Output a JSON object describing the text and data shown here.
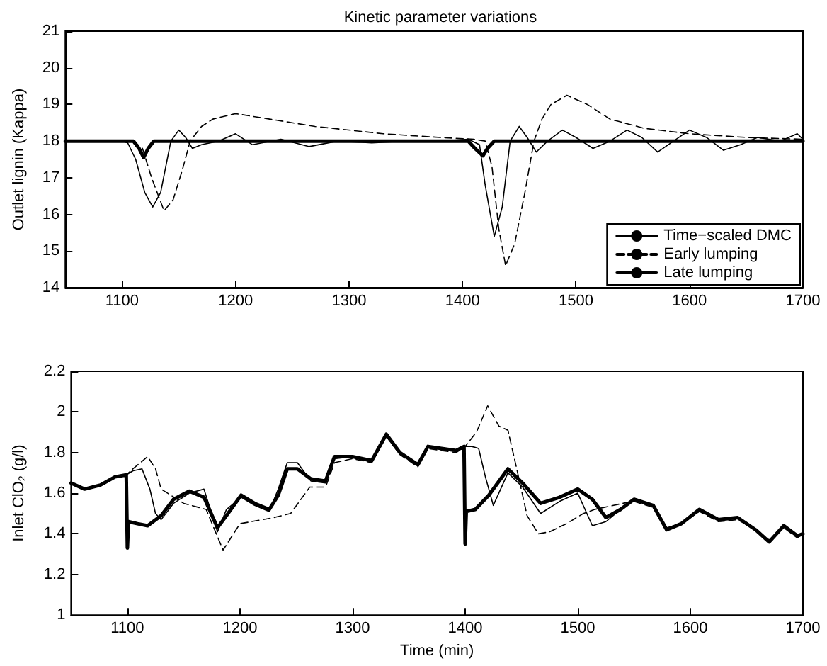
{
  "chart_data": [
    {
      "type": "line",
      "title": "Kinetic parameter variations",
      "ylabel": "Outlet lignin (Kappa)",
      "xlim": [
        1050,
        1700
      ],
      "xticks": [
        1100,
        1200,
        1300,
        1400,
        1500,
        1600,
        1700
      ],
      "ylim": [
        14,
        21
      ],
      "yticks": [
        14,
        15,
        16,
        17,
        18,
        19,
        20,
        21
      ],
      "grid": false,
      "legend": "bottom right",
      "marker": "none",
      "series": [
        {
          "name": "Time−scaled DMC",
          "color": "#000000",
          "line_style": "solid",
          "x": [
            1050,
            1100,
            1105,
            1112,
            1120,
            1127,
            1134,
            1143,
            1150,
            1156,
            1162,
            1170,
            1185,
            1200,
            1215,
            1240,
            1265,
            1290,
            1320,
            1350,
            1380,
            1405,
            1415,
            1420,
            1428,
            1435,
            1442,
            1450,
            1457,
            1465,
            1475,
            1488,
            1500,
            1515,
            1530,
            1545,
            1558,
            1572,
            1586,
            1600,
            1615,
            1630,
            1645,
            1660,
            1680,
            1695,
            1700
          ],
          "values": [
            18,
            18,
            17.95,
            17.5,
            16.6,
            16.2,
            16.6,
            18,
            18.3,
            18.1,
            17.8,
            17.9,
            18,
            18.2,
            17.9,
            18.05,
            17.85,
            18,
            17.95,
            18,
            18,
            18.05,
            17.9,
            16.8,
            15.4,
            16.2,
            18,
            18.4,
            18.1,
            17.7,
            18.0,
            18.3,
            18.1,
            17.8,
            18.0,
            18.3,
            18.1,
            17.7,
            18.0,
            18.3,
            18.1,
            17.75,
            17.9,
            18.1,
            18.0,
            18.2,
            18.05
          ]
        },
        {
          "name": "Early lumping",
          "color": "#000000",
          "line_style": "dashed",
          "x": [
            1050,
            1110,
            1118,
            1126,
            1137,
            1145,
            1153,
            1160,
            1170,
            1180,
            1200,
            1230,
            1270,
            1330,
            1380,
            1410,
            1420,
            1426,
            1432,
            1438,
            1446,
            1455,
            1463,
            1470,
            1478,
            1492,
            1510,
            1530,
            1560,
            1600,
            1650,
            1700
          ],
          "values": [
            18,
            18,
            17.8,
            17,
            16.1,
            16.4,
            17.2,
            18,
            18.4,
            18.6,
            18.75,
            18.6,
            18.4,
            18.2,
            18.1,
            18.05,
            18,
            17.3,
            15.6,
            14.6,
            15.2,
            16.6,
            18,
            18.6,
            19.0,
            19.25,
            19.0,
            18.6,
            18.35,
            18.2,
            18.1,
            18.05
          ]
        },
        {
          "name": "Late lumping",
          "color": "#000000",
          "line_style": "solid",
          "x": [
            1050,
            1110,
            1115,
            1119,
            1123,
            1128,
            1405,
            1411,
            1418,
            1422,
            1428,
            1700
          ],
          "values": [
            18,
            18,
            17.8,
            17.55,
            17.8,
            18,
            18,
            17.8,
            17.6,
            17.8,
            18,
            18
          ]
        }
      ]
    },
    {
      "type": "line",
      "xlabel": "Time (min)",
      "ylabel": "Inlet ClO$_{2}$ (g/l)",
      "xlim": [
        1050,
        1700
      ],
      "xticks": [
        1100,
        1200,
        1300,
        1400,
        1500,
        1600,
        1700
      ],
      "ylim": [
        1,
        2.2
      ],
      "yticks": [
        1,
        1.2,
        1.4,
        1.6,
        1.8,
        2,
        2.2
      ],
      "grid": false,
      "legend": false,
      "marker": "none",
      "series": [
        {
          "color": "#000000",
          "line_style": "solid",
          "x": [
            1050,
            1062,
            1076,
            1089,
            1099,
            1105,
            1113,
            1120,
            1125,
            1130,
            1141,
            1155,
            1168,
            1180,
            1188,
            1201,
            1213,
            1226,
            1234,
            1242,
            1251,
            1263,
            1276,
            1284,
            1300,
            1317,
            1330,
            1342,
            1358,
            1367,
            1379,
            1392,
            1400,
            1406,
            1412,
            1418,
            1425,
            1438,
            1451,
            1467,
            1484,
            1500,
            1513,
            1525,
            1538,
            1550,
            1567,
            1579,
            1592,
            1608,
            1625,
            1642,
            1658,
            1670,
            1683,
            1695,
            1700
          ],
          "values": [
            1.65,
            1.62,
            1.64,
            1.68,
            1.69,
            1.71,
            1.72,
            1.62,
            1.5,
            1.47,
            1.55,
            1.6,
            1.62,
            1.41,
            1.52,
            1.58,
            1.54,
            1.51,
            1.62,
            1.75,
            1.75,
            1.66,
            1.65,
            1.77,
            1.78,
            1.76,
            1.89,
            1.8,
            1.74,
            1.83,
            1.82,
            1.81,
            1.83,
            1.83,
            1.82,
            1.68,
            1.54,
            1.7,
            1.63,
            1.5,
            1.56,
            1.6,
            1.44,
            1.46,
            1.52,
            1.57,
            1.54,
            1.42,
            1.45,
            1.52,
            1.47,
            1.48,
            1.42,
            1.36,
            1.44,
            1.39,
            1.4
          ]
        },
        {
          "color": "#000000",
          "line_style": "dashed",
          "x": [
            1050,
            1062,
            1076,
            1089,
            1099,
            1105,
            1118,
            1125,
            1130,
            1150,
            1170,
            1185,
            1200,
            1230,
            1245,
            1262,
            1276,
            1284,
            1300,
            1317,
            1330,
            1342,
            1358,
            1367,
            1379,
            1392,
            1400,
            1410,
            1420,
            1430,
            1438,
            1445,
            1455,
            1465,
            1475,
            1490,
            1505,
            1515,
            1540,
            1550,
            1567,
            1579,
            1592,
            1608,
            1625,
            1642,
            1658,
            1670,
            1683,
            1695,
            1700
          ],
          "values": [
            1.65,
            1.62,
            1.64,
            1.68,
            1.69,
            1.72,
            1.78,
            1.72,
            1.62,
            1.55,
            1.52,
            1.32,
            1.45,
            1.48,
            1.5,
            1.63,
            1.63,
            1.75,
            1.77,
            1.75,
            1.88,
            1.79,
            1.73,
            1.82,
            1.81,
            1.8,
            1.83,
            1.9,
            2.03,
            1.93,
            1.91,
            1.74,
            1.49,
            1.4,
            1.41,
            1.45,
            1.5,
            1.52,
            1.55,
            1.56,
            1.53,
            1.43,
            1.45,
            1.51,
            1.46,
            1.47,
            1.42,
            1.37,
            1.43,
            1.38,
            1.4
          ]
        },
        {
          "color": "#000000",
          "line_style": "solid",
          "x": [
            1050,
            1062,
            1076,
            1089,
            1099,
            1100,
            1101,
            1109,
            1118,
            1130,
            1141,
            1155,
            1168,
            1180,
            1188,
            1201,
            1213,
            1226,
            1234,
            1242,
            1251,
            1263,
            1276,
            1284,
            1300,
            1317,
            1330,
            1342,
            1358,
            1367,
            1379,
            1392,
            1399,
            1400,
            1401,
            1409,
            1421,
            1438,
            1451,
            1467,
            1484,
            1500,
            1513,
            1525,
            1538,
            1550,
            1567,
            1579,
            1592,
            1608,
            1625,
            1642,
            1658,
            1670,
            1683,
            1695,
            1700
          ],
          "values": [
            1.65,
            1.62,
            1.64,
            1.68,
            1.69,
            1.33,
            1.46,
            1.45,
            1.44,
            1.49,
            1.57,
            1.61,
            1.58,
            1.43,
            1.49,
            1.59,
            1.55,
            1.52,
            1.59,
            1.72,
            1.72,
            1.67,
            1.66,
            1.78,
            1.78,
            1.76,
            1.89,
            1.8,
            1.74,
            1.83,
            1.82,
            1.81,
            1.83,
            1.35,
            1.51,
            1.52,
            1.59,
            1.72,
            1.65,
            1.55,
            1.58,
            1.62,
            1.57,
            1.48,
            1.52,
            1.57,
            1.54,
            1.42,
            1.45,
            1.52,
            1.47,
            1.48,
            1.42,
            1.36,
            1.44,
            1.39,
            1.4
          ]
        }
      ]
    }
  ]
}
